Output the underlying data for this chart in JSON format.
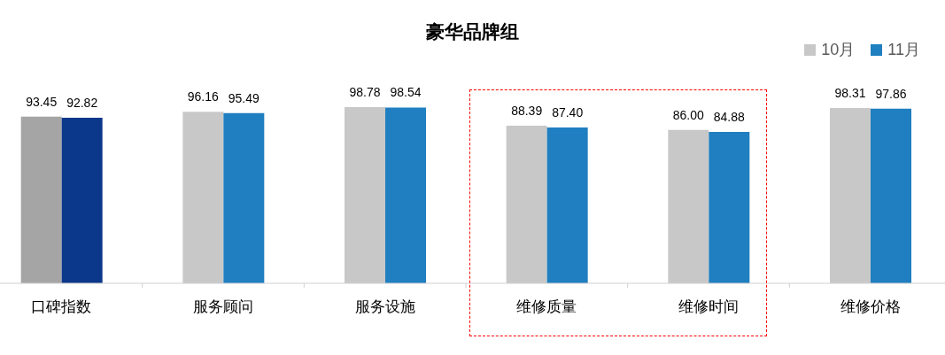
{
  "chart_data": {
    "type": "bar",
    "title": "豪华品牌组",
    "categories": [
      "口碑指数",
      "服务顾问",
      "服务设施",
      "维修质量",
      "维修时间",
      "维修价格"
    ],
    "series": [
      {
        "name": "10月",
        "color": "#c8c8c8",
        "colors": [
          "#a5a5a5",
          "#c8c8c8",
          "#c8c8c8",
          "#c8c8c8",
          "#c8c8c8",
          "#c8c8c8"
        ],
        "values": [
          93.45,
          96.16,
          98.78,
          88.39,
          86.0,
          98.31
        ],
        "value_labels": [
          "93.45",
          "96.16",
          "98.78",
          "88.39",
          "86.00",
          "98.31"
        ]
      },
      {
        "name": "11月",
        "color": "#1f7fc0",
        "colors": [
          "#0c388c",
          "#1f7fc0",
          "#1f7fc0",
          "#1f7fc0",
          "#1f7fc0",
          "#1f7fc0"
        ],
        "values": [
          92.82,
          95.49,
          98.54,
          87.4,
          84.88,
          97.86
        ],
        "value_labels": [
          "92.82",
          "95.49",
          "98.54",
          "87.40",
          "84.88",
          "97.86"
        ]
      }
    ],
    "tick_labels": "x",
    "legend": "top right",
    "grid": false
  }
}
